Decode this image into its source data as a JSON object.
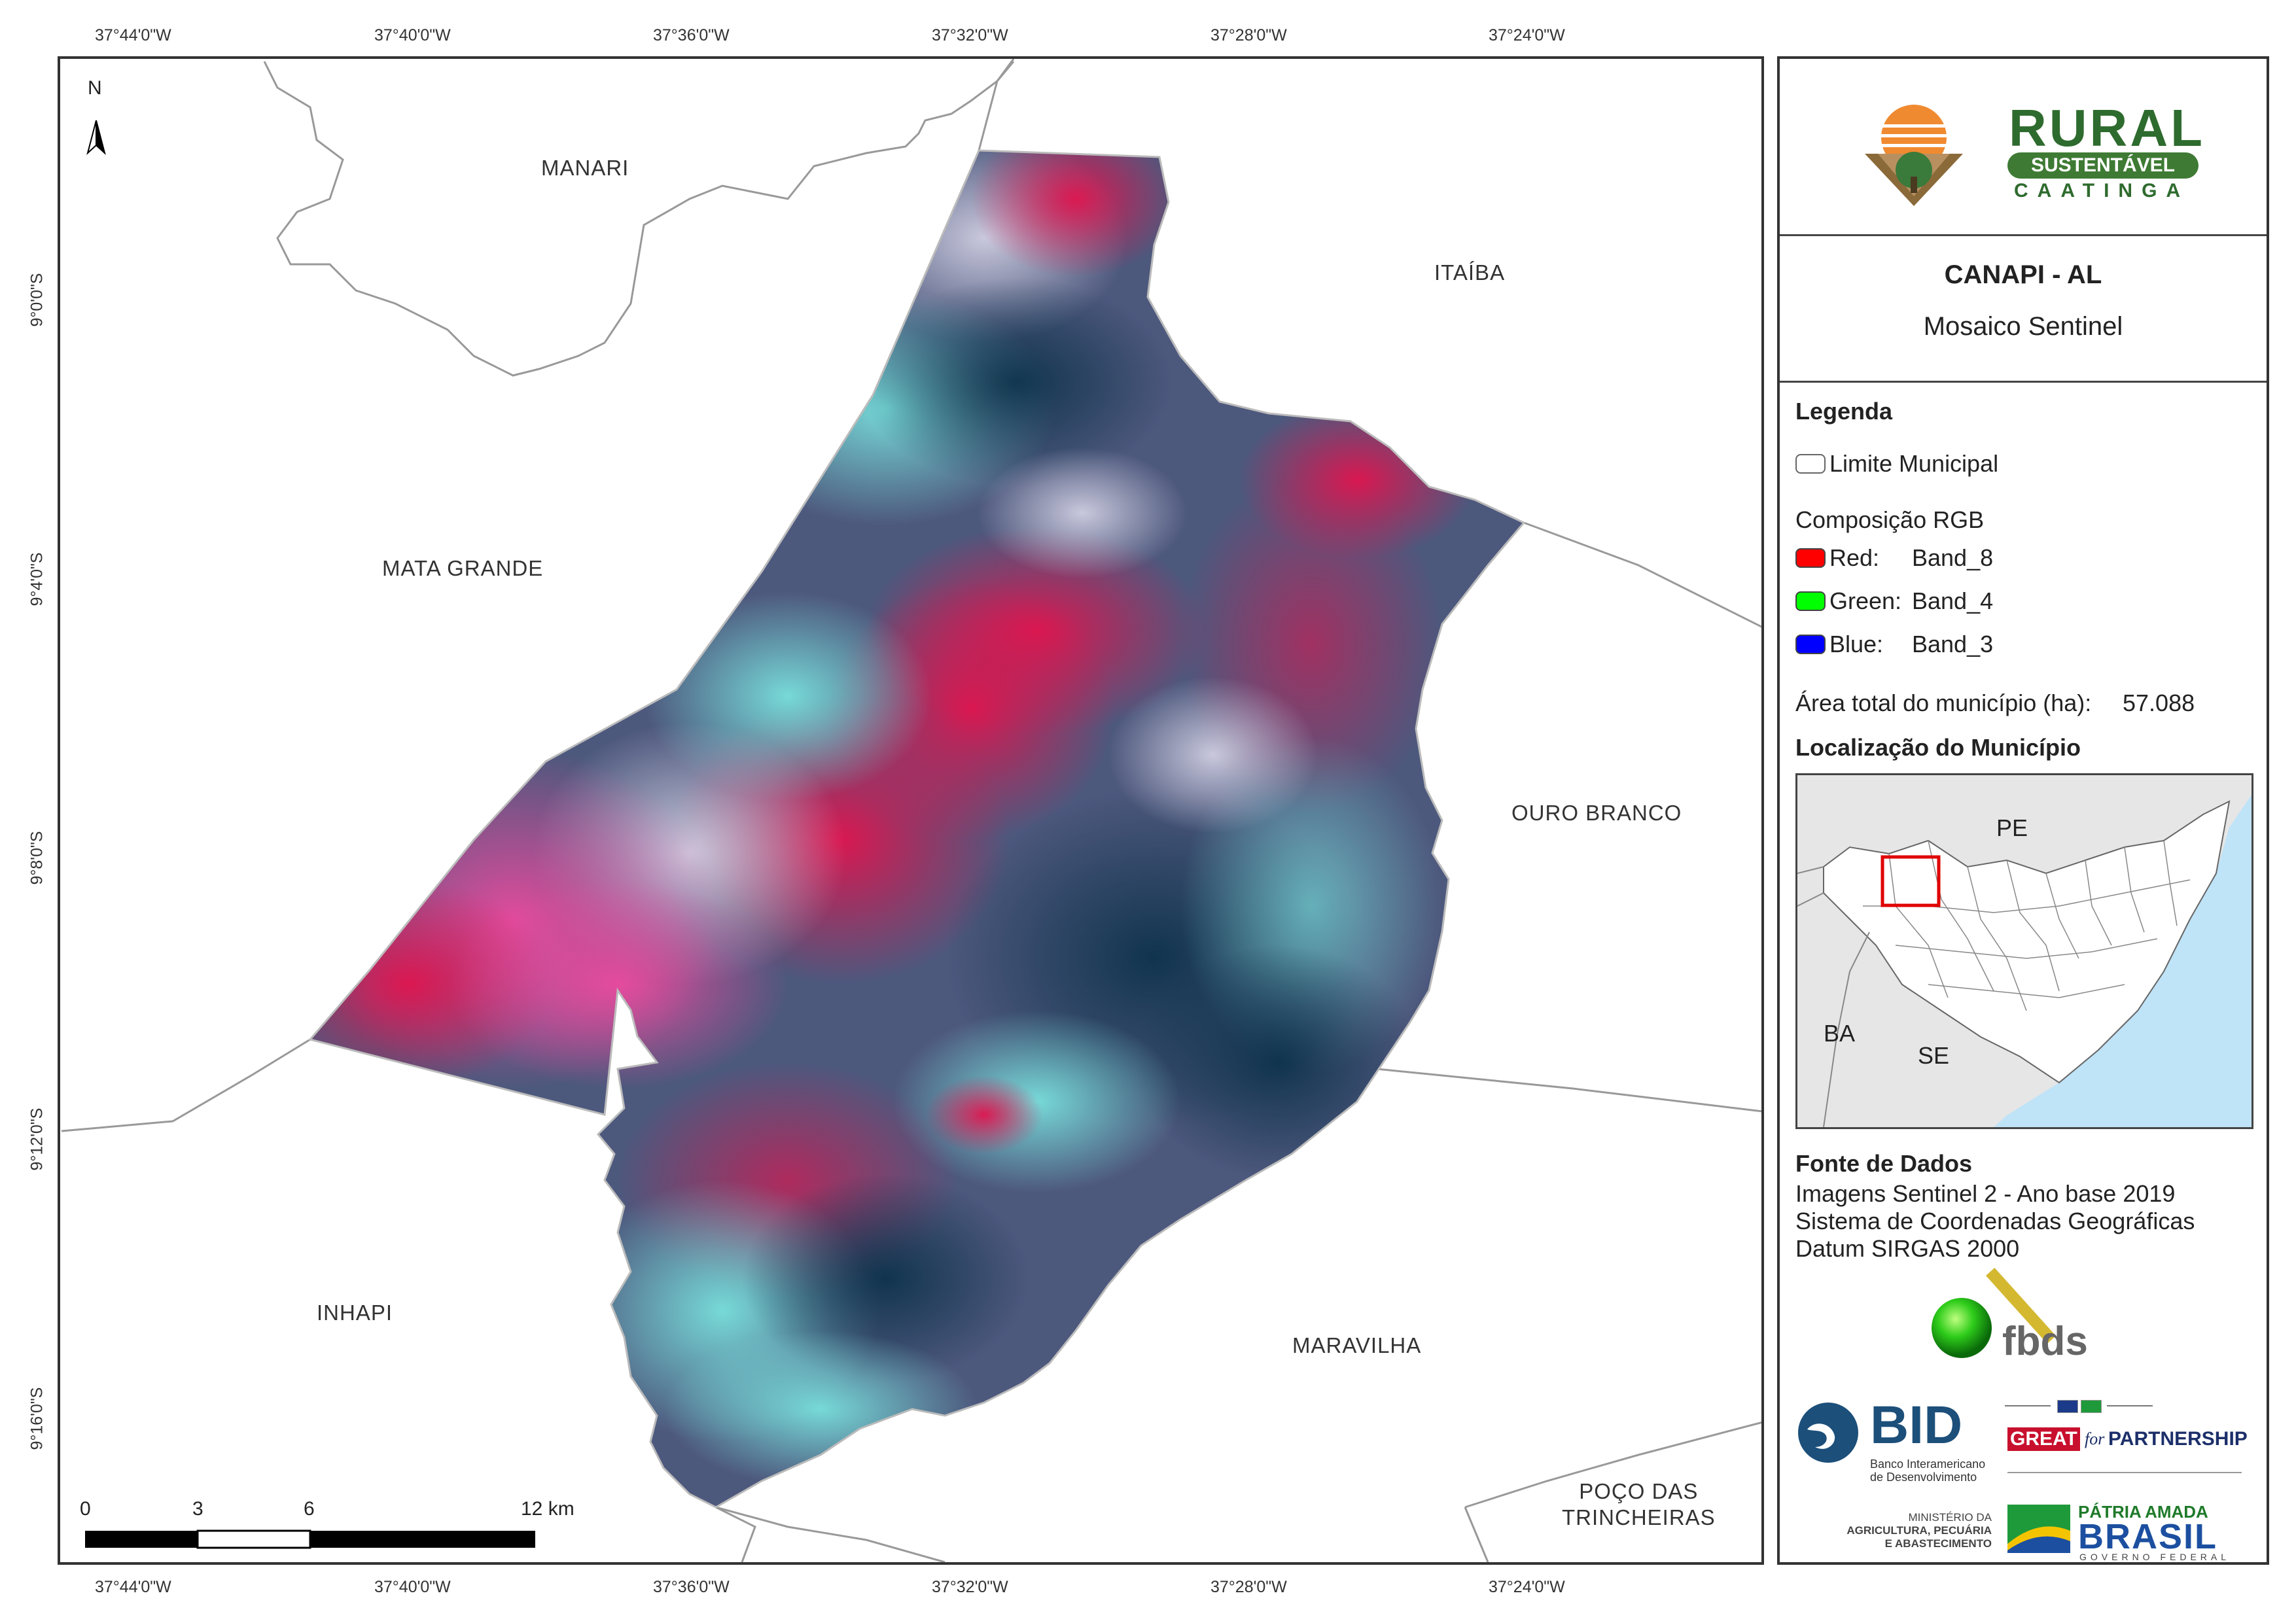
{
  "coordinates": {
    "top": [
      "37°44'0\"W",
      "37°40'0\"W",
      "37°36'0\"W",
      "37°32'0\"W",
      "37°28'0\"W",
      "37°24'0\"W"
    ],
    "bottom": [
      "37°44'0\"W",
      "37°40'0\"W",
      "37°36'0\"W",
      "37°32'0\"W",
      "37°28'0\"W",
      "37°24'0\"W"
    ],
    "left": [
      "9°0'0\"S",
      "9°4'0\"S",
      "9°8'0\"S",
      "9°12'0\"S",
      "9°16'0\"S"
    ]
  },
  "map": {
    "north_label": "N",
    "places": {
      "manari": "MANARI",
      "itaiba": "ITAÍBA",
      "mata_grande": "MATA GRANDE",
      "ouro_branco": "OURO BRANCO",
      "inhapi": "INHAPI",
      "maravilha": "MARAVILHA",
      "poco_line1": "POÇO DAS",
      "poco_line2": "TRINCHEIRAS"
    },
    "scale": {
      "t0": "0",
      "t3": "3",
      "t6": "6",
      "t12": "12 km"
    }
  },
  "panel": {
    "logo": {
      "rural": "RURAL",
      "sustentavel": "SUSTENTÁVEL",
      "caatinga": "CAATINGA"
    },
    "title": "CANAPI - AL",
    "subtitle": "Mosaico Sentinel",
    "legend": {
      "heading": "Legenda",
      "limit_label": "Limite Municipal",
      "rgb_heading": "Composição RGB",
      "red": {
        "label": "Red:",
        "band": "Band_8",
        "color": "#ff0000"
      },
      "green": {
        "label": "Green:",
        "band": "Band_4",
        "color": "#00ff00"
      },
      "blue": {
        "label": "Blue:",
        "band": "Band_3",
        "color": "#0000ff"
      },
      "area_label": "Área total do município (ha):",
      "area_value": "57.088"
    },
    "location": {
      "heading": "Localização do Município",
      "pe": "PE",
      "ba": "BA",
      "se": "SE"
    },
    "sources": {
      "heading": "Fonte de Dados",
      "line1": "Imagens Sentinel 2 - Ano base 2019",
      "line2": "Sistema de Coordenadas Geográficas",
      "line3": "Datum SIRGAS 2000"
    },
    "partners": {
      "fbds": "fbds",
      "bid": "BID",
      "bid_sub1": "Banco Interamericano",
      "bid_sub2": "de Desenvolvimento",
      "great": "GREAT",
      "for": "for",
      "partnership": "PARTNERSHIP",
      "ministerio1": "MINISTÉRIO DA",
      "ministerio2": "AGRICULTURA, PECUÁRIA",
      "ministerio3": "E ABASTECIMENTO",
      "patria": "PÁTRIA AMADA",
      "brasil": "BRASIL",
      "governo": "GOVERNO FEDERAL"
    }
  }
}
